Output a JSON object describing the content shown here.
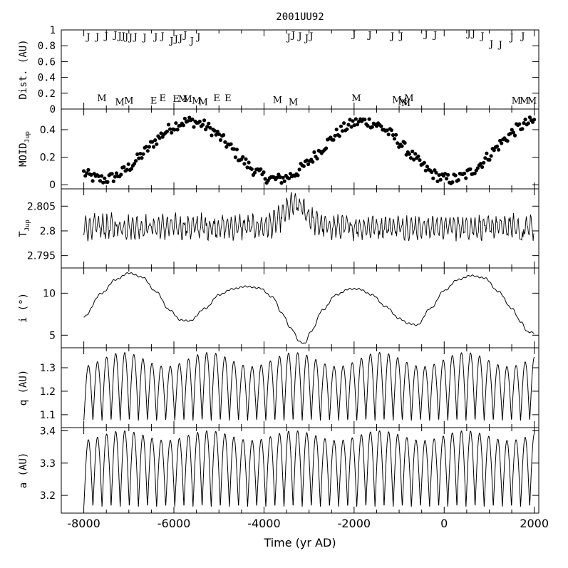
{
  "chart_data": {
    "type": "line",
    "title": "2001UU92",
    "xlabel": "Time (yr AD)",
    "xlim": [
      -8500,
      2100
    ],
    "xticks": [
      "-8000",
      "-6000",
      "-4000",
      "-2000",
      "0",
      "2000"
    ],
    "panels": [
      {
        "id": "dist",
        "kind": "encounters",
        "ylabel": "Dist. (AU)",
        "ylim": [
          0,
          1
        ],
        "yticks": [
          "0",
          "0.2",
          "0.4",
          "0.6",
          "0.8",
          "1"
        ],
        "jupiter": [
          {
            "x": -7900,
            "label": "J"
          },
          {
            "x": -7700,
            "label": "J"
          },
          {
            "x": -7500,
            "label": "J"
          },
          {
            "x": -7300,
            "label": "J"
          },
          {
            "x": -7200,
            "label": "J"
          },
          {
            "x": -7120,
            "label": "J"
          },
          {
            "x": -7050,
            "label": "J"
          },
          {
            "x": -6960,
            "label": "J"
          },
          {
            "x": -6850,
            "label": "J"
          },
          {
            "x": -6650,
            "label": "J"
          },
          {
            "x": -6400,
            "label": "J"
          },
          {
            "x": -6250,
            "label": "J"
          },
          {
            "x": -6050,
            "label": "J"
          },
          {
            "x": -5950,
            "label": "J"
          },
          {
            "x": -5850,
            "label": "J"
          },
          {
            "x": -5750,
            "label": "J"
          },
          {
            "x": -5600,
            "label": "J"
          },
          {
            "x": -5450,
            "label": "J"
          },
          {
            "x": -3450,
            "label": "J"
          },
          {
            "x": -3350,
            "label": "J"
          },
          {
            "x": -3200,
            "label": "J"
          },
          {
            "x": -3050,
            "label": "J"
          },
          {
            "x": -2950,
            "label": "J"
          },
          {
            "x": -2000,
            "label": "J"
          },
          {
            "x": -1650,
            "label": "J"
          },
          {
            "x": -1150,
            "label": "J"
          },
          {
            "x": -950,
            "label": "J"
          },
          {
            "x": -400,
            "label": "J"
          },
          {
            "x": -200,
            "label": "J"
          },
          {
            "x": 550,
            "label": "J"
          },
          {
            "x": 650,
            "label": "J"
          },
          {
            "x": 850,
            "label": "J"
          },
          {
            "x": 1050,
            "label": "J"
          },
          {
            "x": 1250,
            "label": "J"
          },
          {
            "x": 1500,
            "label": "J"
          },
          {
            "x": 1750,
            "label": "J"
          }
        ],
        "jupiter_dist": [
          0.92,
          0.92,
          0.93,
          0.94,
          0.93,
          0.93,
          0.92,
          0.91,
          0.92,
          0.91,
          0.92,
          0.93,
          0.87,
          0.89,
          0.9,
          0.94,
          0.87,
          0.92,
          0.91,
          0.94,
          0.93,
          0.9,
          0.93,
          0.95,
          0.94,
          0.93,
          0.93,
          0.95,
          0.94,
          0.96,
          0.96,
          0.93,
          0.83,
          0.82,
          0.91,
          0.93
        ],
        "other": [
          {
            "x": -7600,
            "label": "M",
            "y": 0.08
          },
          {
            "x": -7200,
            "label": "M",
            "y": 0.03
          },
          {
            "x": -7000,
            "label": "M",
            "y": 0.05
          },
          {
            "x": -6450,
            "label": "E",
            "y": 0.05
          },
          {
            "x": -6250,
            "label": "E",
            "y": 0.08
          },
          {
            "x": -5950,
            "label": "E",
            "y": 0.07
          },
          {
            "x": -5800,
            "label": "M",
            "y": 0.07
          },
          {
            "x": -5700,
            "label": "M",
            "y": 0.07
          },
          {
            "x": -5500,
            "label": "M",
            "y": 0.05
          },
          {
            "x": -5350,
            "label": "M",
            "y": 0.03
          },
          {
            "x": -5050,
            "label": "E",
            "y": 0.08
          },
          {
            "x": -4800,
            "label": "E",
            "y": 0.08
          },
          {
            "x": -3700,
            "label": "M",
            "y": 0.06
          },
          {
            "x": -3350,
            "label": "M",
            "y": 0.03
          },
          {
            "x": -1950,
            "label": "M",
            "y": 0.08
          },
          {
            "x": -1050,
            "label": "M",
            "y": 0.06
          },
          {
            "x": -920,
            "label": "M",
            "y": 0.04
          },
          {
            "x": -850,
            "label": "M",
            "y": 0.02
          },
          {
            "x": -780,
            "label": "M",
            "y": 0.08
          },
          {
            "x": 1600,
            "label": "M",
            "y": 0.05
          },
          {
            "x": 1780,
            "label": "M",
            "y": 0.05
          },
          {
            "x": 1950,
            "label": "M",
            "y": 0.05
          }
        ]
      },
      {
        "id": "moid",
        "kind": "points",
        "ylabel": "MOID",
        "ylabel_sub": "Jup",
        "ylim": [
          -0.03,
          0.55
        ],
        "yticks": [
          "0",
          "0.2",
          "0.4"
        ],
        "tick_values": [
          0,
          0.2,
          0.4
        ],
        "model": {
          "center": 0.25,
          "amp": 0.21,
          "period": 3860,
          "peak": -5650,
          "noise": 0.04
        },
        "x_range": [
          -8000,
          2000
        ]
      },
      {
        "id": "tjup",
        "kind": "line",
        "ylabel": "T",
        "ylabel_sub": "Jup",
        "ylim": [
          2.7925,
          2.8085
        ],
        "yticks": [
          "2.795",
          "2.8",
          "2.805"
        ],
        "tick_values": [
          2.795,
          2.8,
          2.805
        ],
        "model": {
          "center": 2.8008,
          "amp": 0.0018,
          "period": 95,
          "noise": 0.0012,
          "bump_center": -3300,
          "bump_width": 350,
          "bump_amp": 0.0045
        },
        "x_range": [
          -8000,
          2000
        ]
      },
      {
        "id": "incl",
        "kind": "line",
        "ylabel": "i (°)",
        "ylim": [
          3.5,
          13.0
        ],
        "yticks": [
          "5",
          "10"
        ],
        "tick_values": [
          5,
          10
        ],
        "x_range": [
          -8000,
          2000
        ],
        "anchors": [
          [
            -8000,
            7.2
          ],
          [
            -7600,
            10.0
          ],
          [
            -7300,
            11.6
          ],
          [
            -7000,
            12.4
          ],
          [
            -6700,
            11.9
          ],
          [
            -6400,
            10.2
          ],
          [
            -6100,
            8.0
          ],
          [
            -5850,
            6.8
          ],
          [
            -5650,
            6.7
          ],
          [
            -5300,
            8.2
          ],
          [
            -5000,
            9.8
          ],
          [
            -4700,
            10.5
          ],
          [
            -4400,
            10.8
          ],
          [
            -4100,
            10.6
          ],
          [
            -3800,
            9.5
          ],
          [
            -3600,
            7.6
          ],
          [
            -3400,
            5.8
          ],
          [
            -3200,
            4.2
          ],
          [
            -3100,
            4.0
          ],
          [
            -2950,
            5.5
          ],
          [
            -2700,
            8.0
          ],
          [
            -2400,
            9.8
          ],
          [
            -2100,
            10.5
          ],
          [
            -1900,
            10.5
          ],
          [
            -1600,
            9.8
          ],
          [
            -1300,
            8.4
          ],
          [
            -1000,
            7.0
          ],
          [
            -800,
            6.4
          ],
          [
            -600,
            6.2
          ],
          [
            -300,
            8.2
          ],
          [
            0,
            10.3
          ],
          [
            300,
            11.6
          ],
          [
            600,
            12.1
          ],
          [
            900,
            11.8
          ],
          [
            1200,
            10.2
          ],
          [
            1500,
            8.2
          ],
          [
            1700,
            6.6
          ],
          [
            1850,
            5.4
          ],
          [
            2000,
            5.3
          ]
        ]
      },
      {
        "id": "q",
        "kind": "line",
        "ylabel": "q (AU)",
        "ylim": [
          1.045,
          1.385
        ],
        "yticks": [
          "1.1",
          "1.2",
          "1.3"
        ],
        "tick_values": [
          1.1,
          1.2,
          1.3
        ],
        "x_range": [
          -8000,
          2000
        ],
        "model": {
          "min": 1.075,
          "max_base": 1.335,
          "max_var": 0.03,
          "period": 202
        }
      },
      {
        "id": "a",
        "kind": "line",
        "ylabel": "a (AU)",
        "ylim": [
          3.145,
          3.41
        ],
        "yticks": [
          "3.2",
          "3.3",
          "3.4"
        ],
        "tick_values": [
          3.2,
          3.3,
          3.4
        ],
        "x_range": [
          -8000,
          2000
        ],
        "model": {
          "min": 3.165,
          "max_base": 3.385,
          "max_var": 0.015,
          "period": 202
        }
      }
    ]
  }
}
